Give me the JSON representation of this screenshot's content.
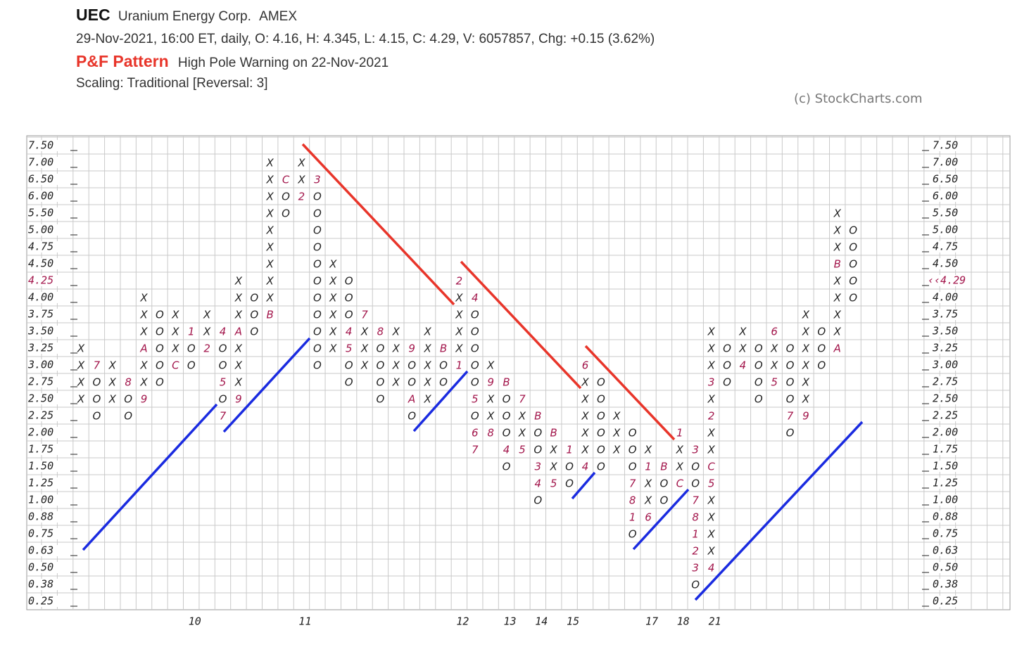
{
  "header": {
    "symbol": "UEC",
    "name": "Uranium Energy Corp.",
    "exchange": "AMEX",
    "quote": "29-Nov-2021, 16:00 ET, daily, O: 4.16, H: 4.345, L: 4.15, C: 4.29, V: 6057857, Chg: +0.15 (3.62%)",
    "pattern_label": "P&F Pattern",
    "pattern": "High Pole Warning on 22-Nov-2021",
    "scaling": "Scaling: Traditional [Reversal: 3]",
    "copyright": "(c) StockCharts.com"
  },
  "chart_data": {
    "type": "pnf",
    "grid": true,
    "x_color": "#222222",
    "month_color": "#a3174c",
    "ylim": [
      0.25,
      7.5
    ],
    "yticks": [
      {
        "value": 7.5,
        "label": "7.50"
      },
      {
        "value": 7,
        "label": "7.00"
      },
      {
        "value": 6.5,
        "label": "6.50"
      },
      {
        "value": 6,
        "label": "6.00"
      },
      {
        "value": 5.5,
        "label": "5.50"
      },
      {
        "value": 5,
        "label": "5.00"
      },
      4.75,
      {
        "value": 4.5,
        "label": "4.50"
      },
      4.25,
      {
        "value": 4,
        "label": "4.00"
      },
      3.75,
      {
        "value": 3.5,
        "label": "3.50"
      },
      3.25,
      {
        "value": 3,
        "label": "3.00"
      },
      2.75,
      {
        "value": 2.5,
        "label": "2.50"
      },
      2.25,
      {
        "value": 2,
        "label": "2.00"
      },
      1.75,
      {
        "value": 1.5,
        "label": "1.50"
      },
      1.25,
      {
        "value": 1,
        "label": "1.00"
      },
      0.88,
      0.75,
      0.63,
      {
        "value": 0.5,
        "label": "0.50"
      },
      0.38,
      0.25
    ],
    "last_price": {
      "value": 4.29,
      "label": "‹‹4.29",
      "color": "#a3174c"
    },
    "categories": [
      null,
      null,
      null,
      null,
      null,
      null,
      null,
      "10",
      null,
      null,
      null,
      null,
      null,
      null,
      "11",
      null,
      null,
      null,
      null,
      null,
      null,
      null,
      null,
      null,
      "12",
      null,
      null,
      "13",
      null,
      "14",
      null,
      "15",
      null,
      null,
      null,
      null,
      "17",
      null,
      "18",
      null,
      "21",
      null,
      null,
      null,
      null,
      null,
      null,
      null,
      null,
      null
    ],
    "columns": [
      {
        "top": 3.25,
        "boxes": [
          "X",
          "X",
          "X",
          "X"
        ]
      },
      {
        "top": 3,
        "boxes": [
          "7",
          "O",
          "O",
          "O"
        ]
      },
      {
        "top": 3,
        "boxes": [
          "X",
          "X",
          "X"
        ]
      },
      {
        "top": 2.75,
        "boxes": [
          "8",
          "O",
          "O"
        ]
      },
      {
        "top": 4,
        "boxes": [
          "X",
          "X",
          "X",
          "A",
          "X",
          "X",
          "9"
        ]
      },
      {
        "top": 3.75,
        "boxes": [
          "O",
          "O",
          "O",
          "O",
          "O"
        ]
      },
      {
        "top": 3.75,
        "boxes": [
          "X",
          "X",
          "X",
          "C"
        ]
      },
      {
        "top": 3.5,
        "boxes": [
          "1",
          "O",
          "O"
        ]
      },
      {
        "top": 3.75,
        "boxes": [
          "X",
          "X",
          "2"
        ]
      },
      {
        "top": 3.5,
        "boxes": [
          "4",
          "O",
          "O",
          "5",
          "O",
          "7"
        ]
      },
      {
        "top": 4.25,
        "boxes": [
          "X",
          "X",
          "X",
          "A",
          "X",
          "X",
          "X",
          "9"
        ]
      },
      {
        "top": 4,
        "boxes": [
          "O",
          "O",
          "O"
        ]
      },
      {
        "top": 7,
        "boxes": [
          "X",
          "X",
          "X",
          "X",
          "X",
          "X",
          "X",
          "X",
          "X",
          "B"
        ]
      },
      {
        "top": 6.5,
        "boxes": [
          "C",
          "O",
          "O"
        ]
      },
      {
        "top": 7,
        "boxes": [
          "X",
          "X",
          "2"
        ]
      },
      {
        "top": 6.5,
        "boxes": [
          "3",
          "O",
          "O",
          "O",
          "O",
          "O",
          "O",
          "O",
          "O",
          "O",
          "O",
          "O"
        ]
      },
      {
        "top": 4.5,
        "boxes": [
          "X",
          "X",
          "X",
          "X",
          "X",
          "X"
        ]
      },
      {
        "top": 4.25,
        "boxes": [
          "O",
          "O",
          "O",
          "4",
          "5",
          "O",
          "O"
        ]
      },
      {
        "top": 3.75,
        "boxes": [
          "7",
          "X",
          "X",
          "X"
        ]
      },
      {
        "top": 3.5,
        "boxes": [
          "8",
          "O",
          "O",
          "O",
          "O"
        ]
      },
      {
        "top": 3.5,
        "boxes": [
          "X",
          "X",
          "X",
          "X"
        ]
      },
      {
        "top": 3.25,
        "boxes": [
          "9",
          "O",
          "O",
          "A",
          "O"
        ]
      },
      {
        "top": 3.5,
        "boxes": [
          "X",
          "X",
          "X",
          "X",
          "X"
        ]
      },
      {
        "top": 3.25,
        "boxes": [
          "B",
          "O",
          "O"
        ]
      },
      {
        "top": 4.25,
        "boxes": [
          "2",
          "X",
          "X",
          "X",
          "X",
          "1"
        ]
      },
      {
        "top": 4,
        "boxes": [
          "4",
          "O",
          "O",
          "O",
          "O",
          "O",
          "5",
          "O",
          "6",
          "7"
        ]
      },
      {
        "top": 3,
        "boxes": [
          "X",
          "9",
          "X",
          "X",
          "8"
        ]
      },
      {
        "top": 2.75,
        "boxes": [
          "B",
          "O",
          "O",
          "O",
          "4",
          "O"
        ]
      },
      {
        "top": 2.5,
        "boxes": [
          "7",
          "X",
          "X",
          "5"
        ]
      },
      {
        "top": 2.25,
        "boxes": [
          "B",
          "O",
          "O",
          "3",
          "4",
          "O"
        ]
      },
      {
        "top": 2,
        "boxes": [
          "B",
          "X",
          "X",
          "5"
        ]
      },
      {
        "top": 1.75,
        "boxes": [
          "1",
          "O",
          "O"
        ]
      },
      {
        "top": 3,
        "boxes": [
          "6",
          "X",
          "X",
          "X",
          "X",
          "X",
          "4"
        ]
      },
      {
        "top": 2.75,
        "boxes": [
          "O",
          "O",
          "O",
          "O",
          "O",
          "O"
        ]
      },
      {
        "top": 2.25,
        "boxes": [
          "X",
          "X",
          "X"
        ]
      },
      {
        "top": 2,
        "boxes": [
          "O",
          "O",
          "O",
          "7",
          "8",
          "1",
          "O"
        ]
      },
      {
        "top": 1.75,
        "boxes": [
          "X",
          "1",
          "X",
          "X",
          "6"
        ]
      },
      {
        "top": 1.5,
        "boxes": [
          "B",
          "O",
          "O"
        ]
      },
      {
        "top": 2,
        "boxes": [
          "1",
          "X",
          "X",
          "C"
        ]
      },
      {
        "top": 1.75,
        "boxes": [
          "3",
          "O",
          "O",
          "7",
          "8",
          "1",
          "2",
          "3",
          "O"
        ]
      },
      {
        "top": 3.5,
        "boxes": [
          "X",
          "X",
          "X",
          "3",
          "X",
          "2",
          "X",
          "X",
          "C",
          "5",
          "X",
          "X",
          "X",
          "X",
          "4"
        ]
      },
      {
        "top": 3.25,
        "boxes": [
          "O",
          "O",
          "O"
        ]
      },
      {
        "top": 3.5,
        "boxes": [
          "X",
          "X",
          "4"
        ]
      },
      {
        "top": 3.25,
        "boxes": [
          "O",
          "O",
          "O",
          "O"
        ]
      },
      {
        "top": 3.5,
        "boxes": [
          "6",
          "X",
          "X",
          "5"
        ]
      },
      {
        "top": 3.25,
        "boxes": [
          "O",
          "O",
          "O",
          "O",
          "7",
          "O"
        ]
      },
      {
        "top": 3.75,
        "boxes": [
          "X",
          "X",
          "X",
          "X",
          "X",
          "X",
          "9"
        ]
      },
      {
        "top": 3.5,
        "boxes": [
          "O",
          "O",
          "O"
        ]
      },
      {
        "top": 5.5,
        "boxes": [
          "X",
          "X",
          "X",
          "B",
          "X",
          "X",
          "X",
          "X",
          "A"
        ]
      },
      {
        "top": 5,
        "boxes": [
          "O",
          "O",
          "O",
          "O",
          "O"
        ]
      }
    ]
  }
}
